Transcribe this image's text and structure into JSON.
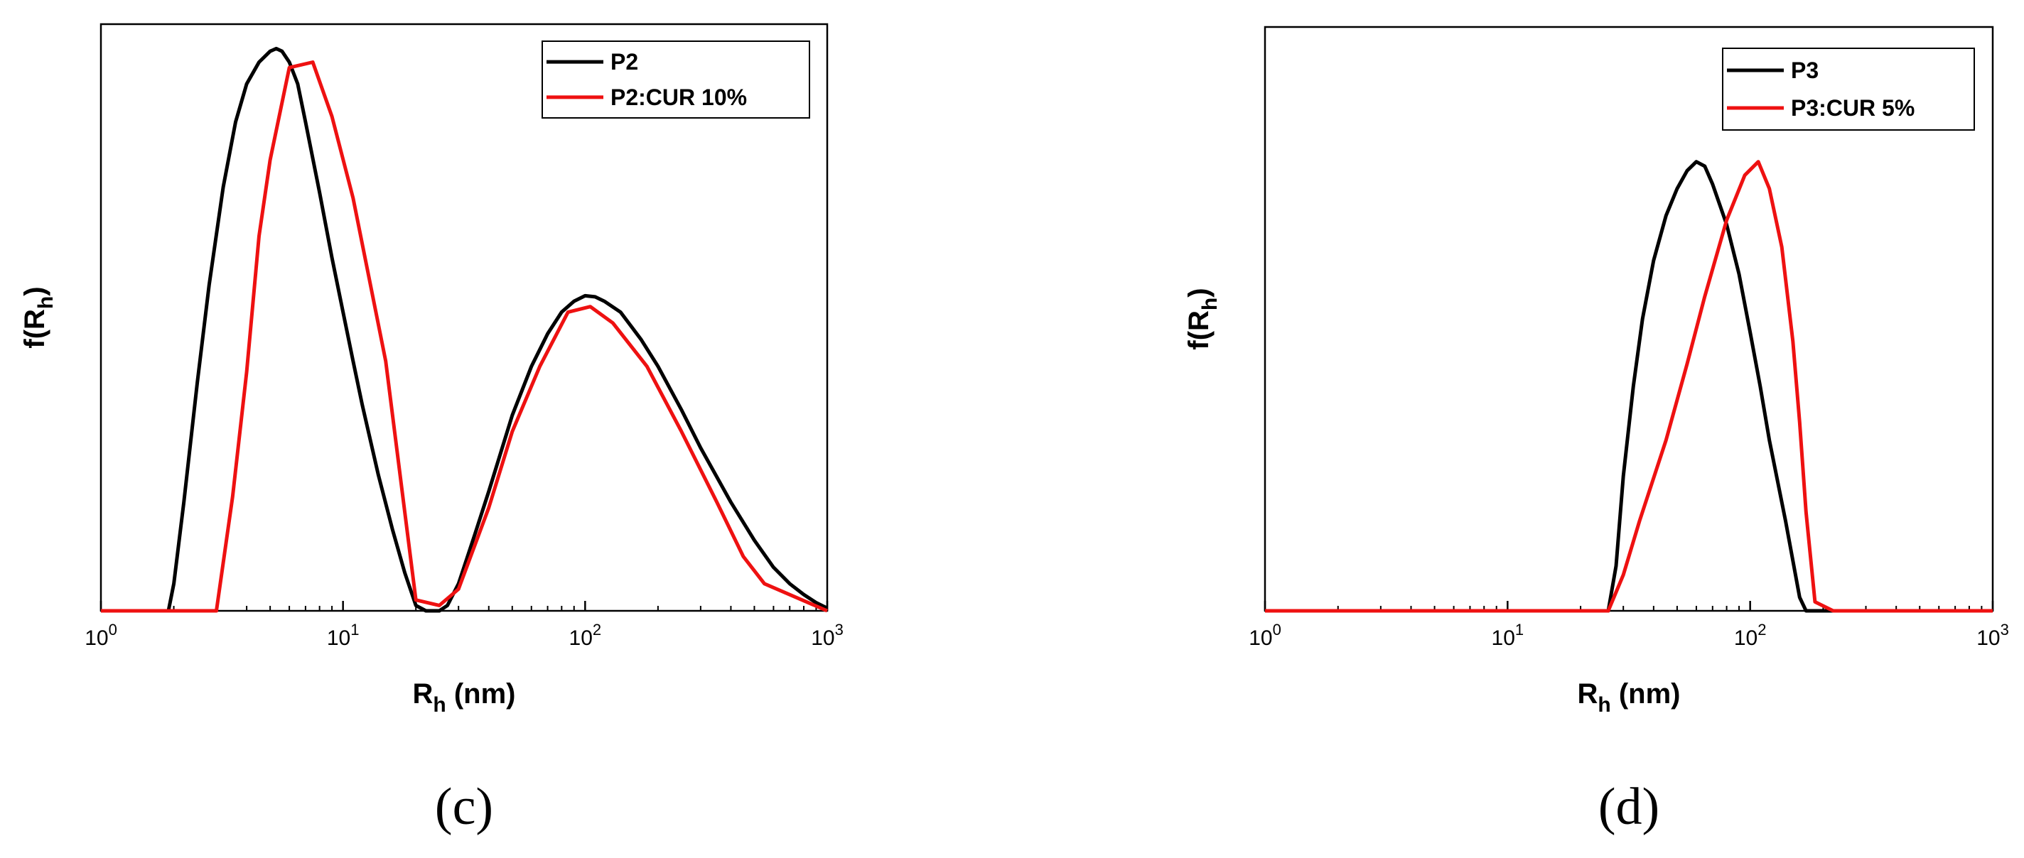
{
  "chart_data": [
    {
      "type": "line",
      "panel_label": "(c)",
      "xlabel": {
        "main": "R",
        "sub": "h",
        "unit": " (nm)"
      },
      "ylabel": {
        "main": "f(R",
        "sub": "h",
        "close": ")"
      },
      "x_scale": "log",
      "xlim": [
        1,
        1000
      ],
      "ylim": [
        0,
        1.08
      ],
      "x_ticks": [
        {
          "base": "10",
          "exp": "0",
          "value": 1
        },
        {
          "base": "10",
          "exp": "1",
          "value": 10
        },
        {
          "base": "10",
          "exp": "2",
          "value": 100
        },
        {
          "base": "10",
          "exp": "3",
          "value": 1000
        }
      ],
      "legend_position": "top-right",
      "series": [
        {
          "name": "P2",
          "color": "#000000",
          "x": [
            1,
            1.8,
            1.9,
            2.0,
            2.2,
            2.5,
            2.8,
            3.2,
            3.6,
            4.0,
            4.5,
            5.0,
            5.3,
            5.6,
            6.0,
            6.5,
            7.0,
            8.0,
            9.0,
            10.0,
            11.0,
            12.0,
            14.0,
            16.0,
            18.0,
            20.0,
            22.0,
            25.0,
            27.0,
            30.0,
            35.0,
            40.0,
            50.0,
            60.0,
            70.0,
            80.0,
            90.0,
            100.0,
            110.0,
            120.0,
            140.0,
            170.0,
            200.0,
            250.0,
            300.0,
            400.0,
            500.0,
            600.0,
            700.0,
            800.0,
            900.0,
            1000.0
          ],
          "y": [
            0,
            0,
            0.0,
            0.05,
            0.2,
            0.42,
            0.6,
            0.78,
            0.9,
            0.97,
            1.01,
            1.03,
            1.035,
            1.03,
            1.01,
            0.97,
            0.9,
            0.77,
            0.65,
            0.55,
            0.46,
            0.38,
            0.25,
            0.15,
            0.07,
            0.01,
            0.0,
            0.0,
            0.01,
            0.05,
            0.14,
            0.22,
            0.36,
            0.45,
            0.51,
            0.55,
            0.57,
            0.58,
            0.578,
            0.57,
            0.55,
            0.5,
            0.45,
            0.37,
            0.3,
            0.2,
            0.13,
            0.08,
            0.05,
            0.03,
            0.015,
            0.005
          ]
        },
        {
          "name": "P2:CUR 10%",
          "color": "#ee1111",
          "x": [
            1,
            3.0,
            3.5,
            4.0,
            4.5,
            5.0,
            6.0,
            7.5,
            9.0,
            11.0,
            15.0,
            20.0,
            25.0,
            30.0,
            40.0,
            50.0,
            65.0,
            85.0,
            105.0,
            130.0,
            180.0,
            250.0,
            350.0,
            450.0,
            550.0,
            1000.0
          ],
          "y": [
            0,
            0.0,
            0.21,
            0.44,
            0.69,
            0.83,
            1.0,
            1.01,
            0.91,
            0.76,
            0.46,
            0.02,
            0.01,
            0.04,
            0.19,
            0.33,
            0.45,
            0.55,
            0.56,
            0.53,
            0.45,
            0.33,
            0.2,
            0.1,
            0.05,
            0.0
          ]
        }
      ]
    },
    {
      "type": "line",
      "panel_label": "(d)",
      "xlabel": {
        "main": "R",
        "sub": "h",
        "unit": " (nm)"
      },
      "ylabel": {
        "main": "f(R",
        "sub": "h",
        "close": ")"
      },
      "x_scale": "log",
      "xlim": [
        1,
        1000
      ],
      "ylim": [
        0,
        1.3
      ],
      "x_ticks": [
        {
          "base": "10",
          "exp": "0",
          "value": 1
        },
        {
          "base": "10",
          "exp": "1",
          "value": 10
        },
        {
          "base": "10",
          "exp": "2",
          "value": 100
        },
        {
          "base": "10",
          "exp": "3",
          "value": 1000
        }
      ],
      "legend_position": "top-right",
      "series": [
        {
          "name": "P3",
          "color": "#000000",
          "x": [
            1,
            26.0,
            28.0,
            30.0,
            33.0,
            36.0,
            40.0,
            45.0,
            50.0,
            55.0,
            60.0,
            65.0,
            70.0,
            80.0,
            90.0,
            100.0,
            110.0,
            120.0,
            140.0,
            160.0,
            170.0,
            180.0,
            1000.0
          ],
          "y": [
            0,
            0.0,
            0.1,
            0.3,
            0.5,
            0.65,
            0.78,
            0.88,
            0.94,
            0.98,
            1.0,
            0.99,
            0.95,
            0.86,
            0.75,
            0.62,
            0.5,
            0.38,
            0.2,
            0.03,
            0.0,
            0.0,
            0.0
          ]
        },
        {
          "name": "P3:CUR 5%",
          "color": "#ee1111",
          "x": [
            1,
            26.0,
            30.0,
            35.0,
            45.0,
            55.0,
            65.0,
            80.0,
            95.0,
            108.0,
            120.0,
            135.0,
            150.0,
            160.0,
            170.0,
            185.0,
            220.0,
            1000.0
          ],
          "y": [
            0,
            0.0,
            0.08,
            0.2,
            0.38,
            0.55,
            0.7,
            0.87,
            0.97,
            1.0,
            0.94,
            0.81,
            0.6,
            0.42,
            0.22,
            0.02,
            0.0,
            0.0
          ]
        }
      ]
    }
  ]
}
